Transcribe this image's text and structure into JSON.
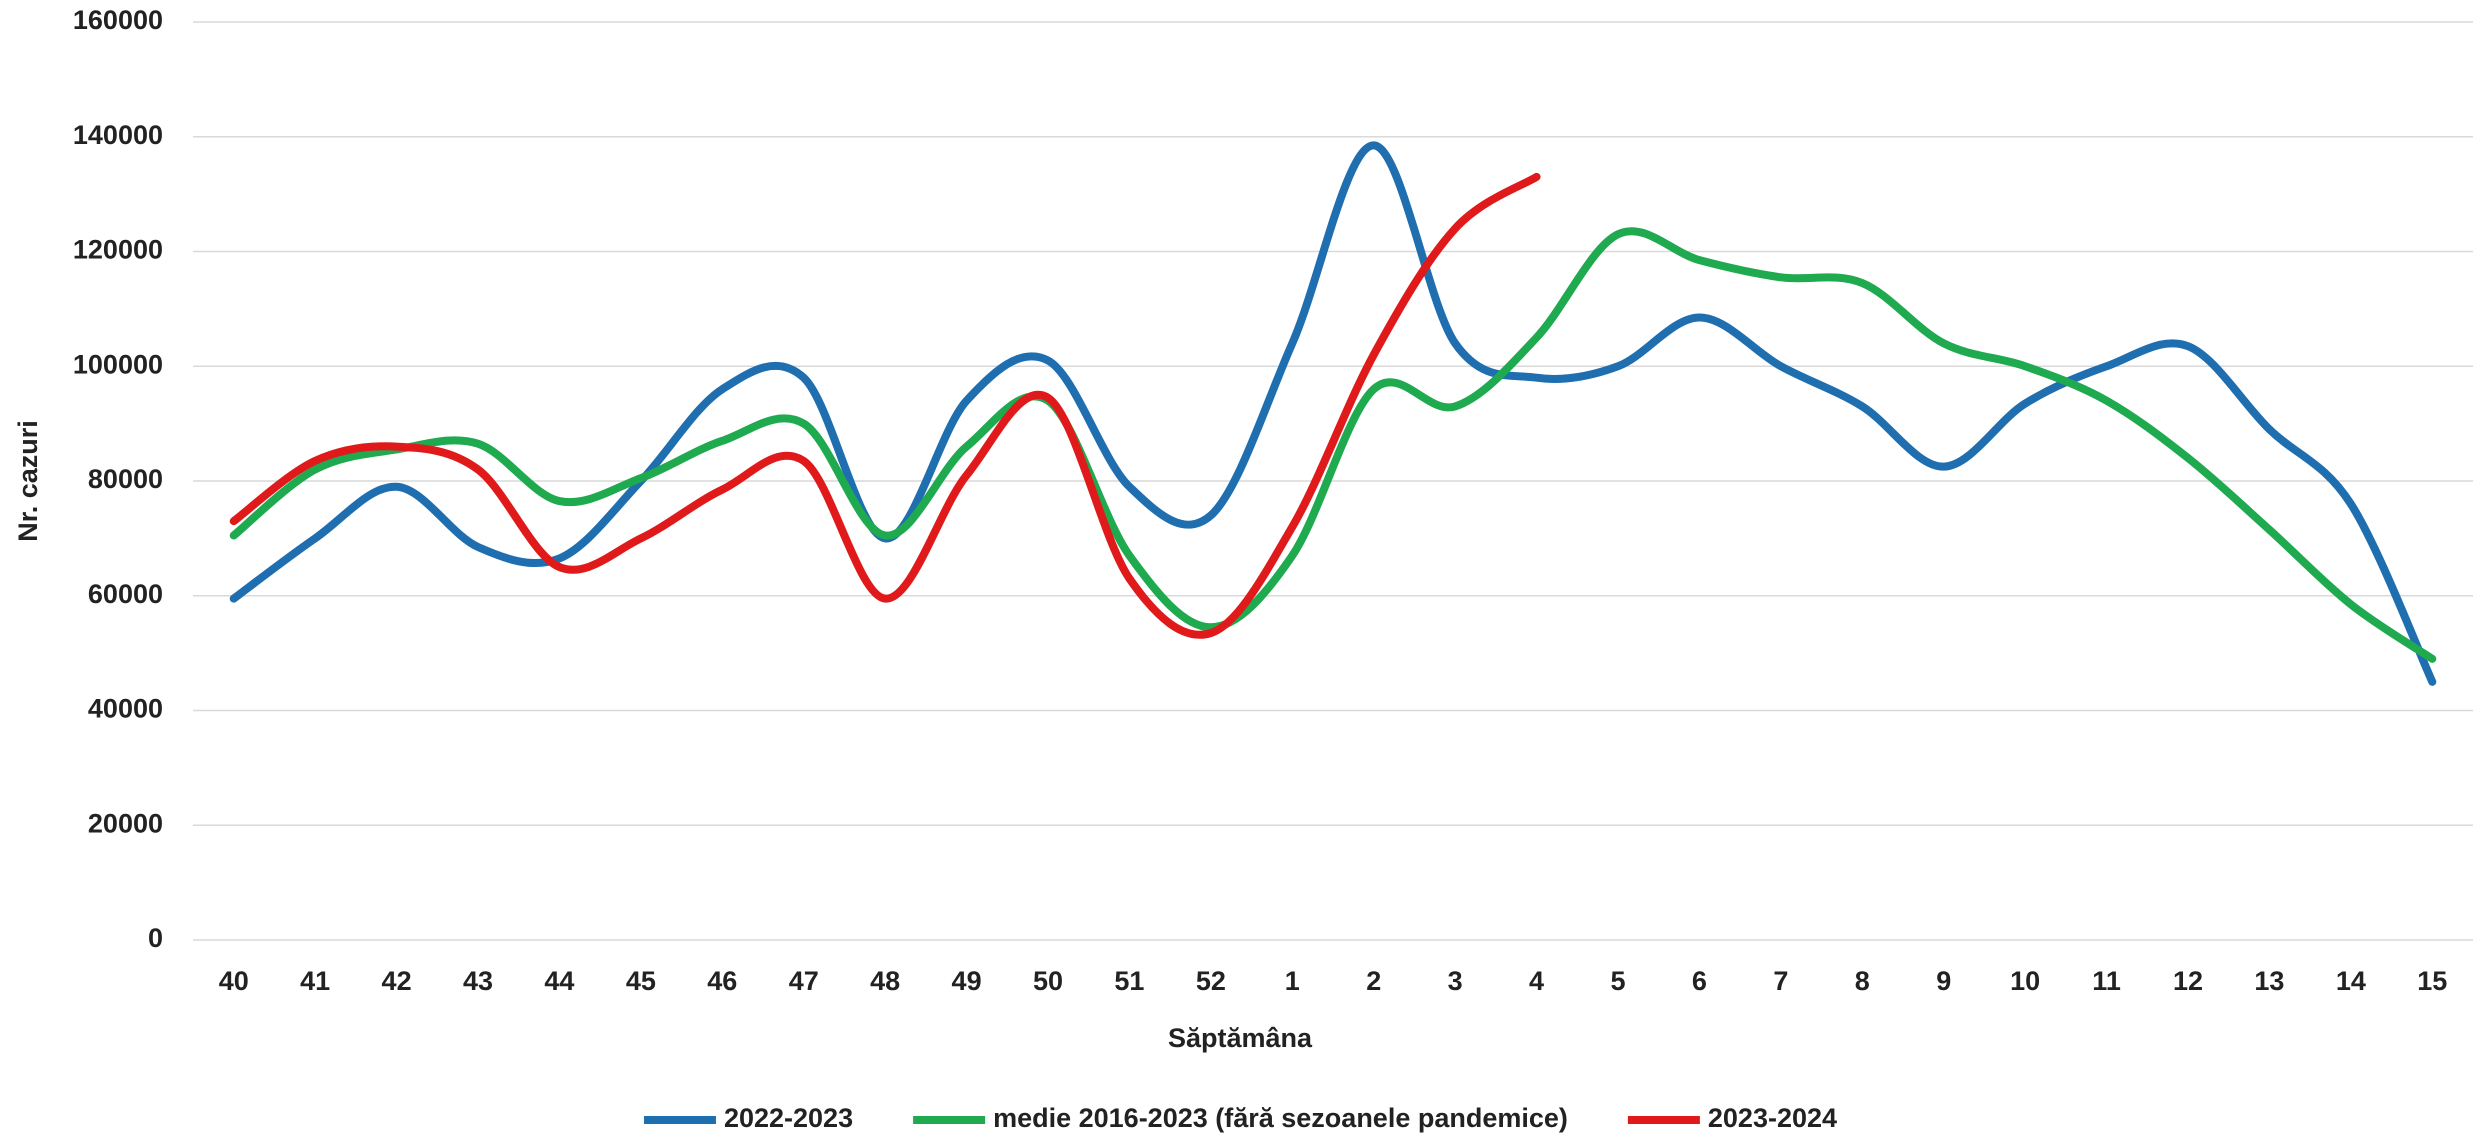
{
  "chart_data": {
    "type": "line",
    "x_label": "Săptămâna",
    "y_label": "Nr. cazuri",
    "categories": [
      "40",
      "41",
      "42",
      "43",
      "44",
      "45",
      "46",
      "47",
      "48",
      "49",
      "50",
      "51",
      "52",
      "1",
      "2",
      "3",
      "4",
      "5",
      "6",
      "7",
      "8",
      "9",
      "10",
      "11",
      "12",
      "13",
      "14",
      "15"
    ],
    "series": [
      {
        "name": "2022-2023",
        "color": "#1f6eb0",
        "values": [
          59500,
          70000,
          79000,
          68500,
          66500,
          80000,
          96000,
          98000,
          70000,
          94000,
          101000,
          79000,
          74000,
          104000,
          138500,
          104000,
          98000,
          100000,
          108500,
          100000,
          93000,
          82500,
          93500,
          100000,
          103500,
          89000,
          76000,
          45000
        ]
      },
      {
        "name": "medie 2016-2023 (fără sezoanele pandemice)",
        "color": "#1faa4f",
        "values": [
          70500,
          82000,
          85500,
          86500,
          76500,
          80500,
          87000,
          90000,
          70500,
          86000,
          94000,
          67000,
          54500,
          67000,
          96000,
          93000,
          105000,
          123000,
          118500,
          115500,
          114500,
          104000,
          100000,
          94000,
          84000,
          71500,
          58500,
          49000
        ]
      },
      {
        "name": "2023-2024",
        "color": "#e01a1a",
        "values": [
          73000,
          83500,
          86000,
          82000,
          65000,
          70000,
          78500,
          83500,
          59500,
          81000,
          94500,
          63000,
          53500,
          72000,
          102000,
          124000,
          133000,
          null,
          null,
          null,
          null,
          null,
          null,
          null,
          null,
          null,
          null,
          null
        ]
      }
    ],
    "ylim": [
      0,
      160000
    ],
    "yticks": [
      0,
      20000,
      40000,
      60000,
      80000,
      100000,
      120000,
      140000,
      160000
    ],
    "grid": true,
    "legend": "bottom"
  }
}
